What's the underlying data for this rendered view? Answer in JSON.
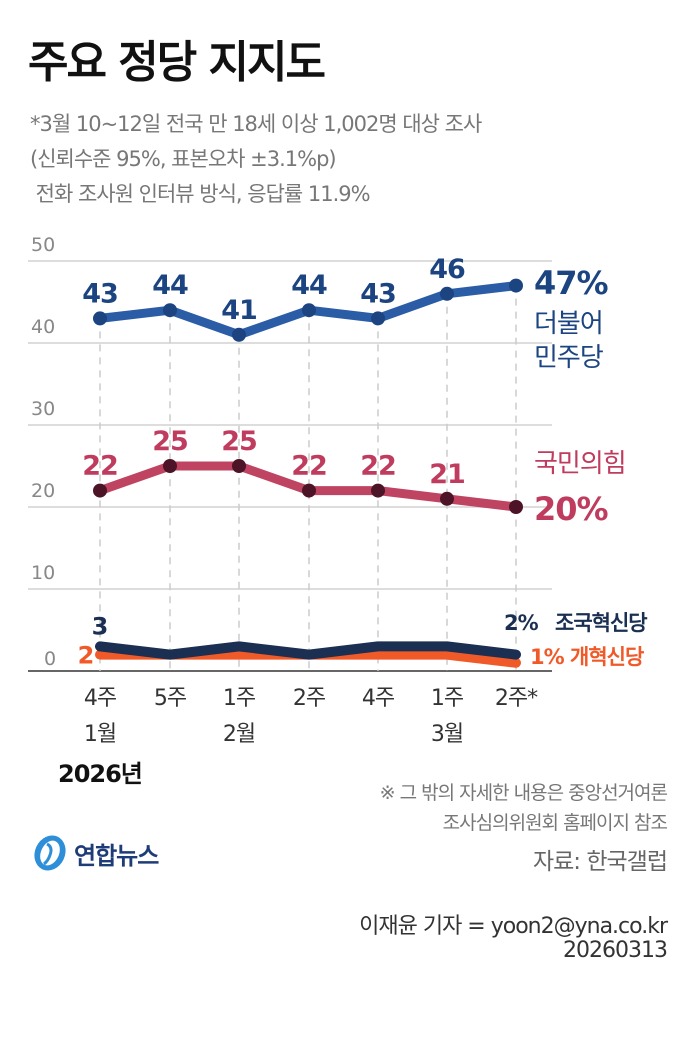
{
  "header": {
    "title": "주요 정당 지지도",
    "subtitle_lines": [
      "*3월 10~12일 전국 만 18세 이상 1,002명 대상 조사",
      "(신뢰수준 95%, 표본오차 ±3.1%p)",
      " 전화 조사원 인터뷰 방식, 응답률 11.9%"
    ]
  },
  "chart_data": {
    "type": "line",
    "title": "주요 정당 지지도",
    "xlabel": "",
    "ylabel": "",
    "ylim": [
      0,
      50
    ],
    "yticks": [
      0,
      10,
      20,
      30,
      40,
      50
    ],
    "grid": true,
    "x_week_labels": [
      "4주",
      "5주",
      "1주",
      "2주",
      "4주",
      "1주",
      "2주*"
    ],
    "x_month_labels": [
      "1월",
      "",
      "2월",
      "",
      "",
      "3월",
      ""
    ],
    "year_label": "2026년",
    "series": [
      {
        "name": "더불어민주당",
        "name_lines": [
          "더불어",
          "민주당"
        ],
        "values": [
          43,
          44,
          41,
          44,
          43,
          46,
          47
        ],
        "final_label": "47%",
        "line_color": "#2b5ca6",
        "dot_color": "#1b4480",
        "label_color": "#1b4480",
        "show_point_labels": [
          true,
          true,
          true,
          true,
          true,
          true,
          false
        ]
      },
      {
        "name": "국민의힘",
        "values": [
          22,
          25,
          25,
          22,
          22,
          21,
          20
        ],
        "final_label": "20%",
        "line_color": "#bf4462",
        "dot_color": "#4d1326",
        "label_color": "#c03c5e",
        "show_point_labels": [
          true,
          true,
          true,
          true,
          true,
          true,
          false
        ]
      },
      {
        "name": "개혁신당",
        "values": [
          2,
          2,
          2,
          2,
          2,
          2,
          1
        ],
        "final_label": "1%",
        "line_color": "#f05a28",
        "label_color": "#f05a28",
        "show_point_labels": [
          true,
          false,
          false,
          false,
          false,
          false,
          false
        ]
      },
      {
        "name": "조국혁신당",
        "values": [
          3,
          2,
          3,
          2,
          3,
          3,
          2
        ],
        "final_label": "2%",
        "line_color": "#1a2f52",
        "label_color": "#1a2f52",
        "show_point_labels": [
          true,
          false,
          false,
          false,
          false,
          false,
          false
        ]
      }
    ]
  },
  "footer": {
    "note_lines": [
      "※ 그 밖의 자세한 내용은 중앙선거여론",
      "조사심의위원회 홈페이지 참조"
    ],
    "source": "자료: 한국갤럽",
    "reporter": "이재윤 기자 = yoon2@yna.co.kr",
    "date": "20260313",
    "logo_text": "연합뉴스"
  }
}
